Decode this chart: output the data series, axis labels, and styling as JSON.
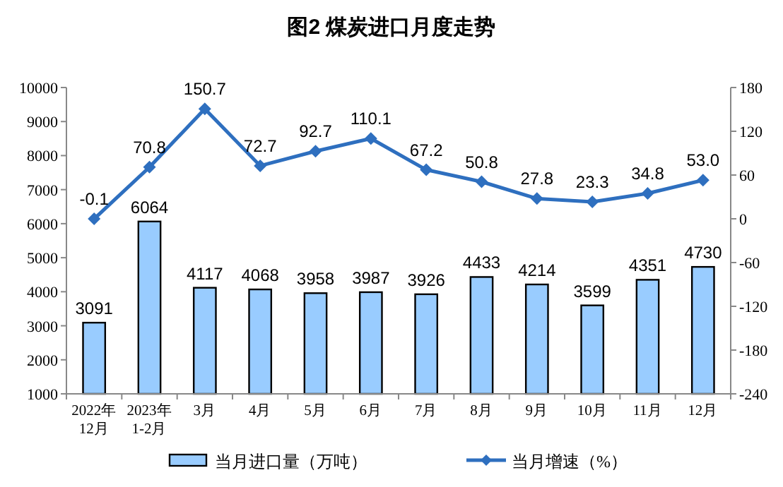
{
  "chart_data": {
    "type": "bar",
    "title": "图2 煤炭进口月度走势",
    "categories": [
      "2022年\n12月",
      "2023年\n1-2月",
      "3月",
      "4月",
      "5月",
      "6月",
      "7月",
      "8月",
      "9月",
      "10月",
      "11月",
      "12月"
    ],
    "series": [
      {
        "name": "当月进口量（万吨）",
        "color": "#99ccff",
        "values": [
          3091,
          6064,
          4117,
          4068,
          3958,
          3987,
          3926,
          4433,
          4214,
          3599,
          4351,
          4730
        ]
      },
      {
        "name": "当月增速（%）",
        "type": "line",
        "axis": "y2",
        "color": "#2e6fbf",
        "marker": "diamond",
        "values": [
          -0.1,
          70.8,
          150.7,
          72.7,
          92.7,
          110.1,
          67.2,
          50.8,
          27.8,
          23.3,
          34.8,
          53.0
        ],
        "value_labels": [
          "-0.1",
          "70.8",
          "150.7",
          "72.7",
          "92.7",
          "110.1",
          "67.2",
          "50.8",
          "27.8",
          "23.3",
          "34.8",
          "53.0"
        ]
      }
    ],
    "data_labels": true,
    "ylim": [
      1000,
      10000
    ],
    "yticks": [
      1000,
      2000,
      3000,
      4000,
      5000,
      6000,
      7000,
      8000,
      9000,
      10000
    ],
    "y2lim": [
      -240,
      180
    ],
    "y2ticks": [
      -240,
      -180,
      -120,
      -60,
      0,
      60,
      120,
      180
    ],
    "grid": false,
    "legend": "bottom"
  }
}
